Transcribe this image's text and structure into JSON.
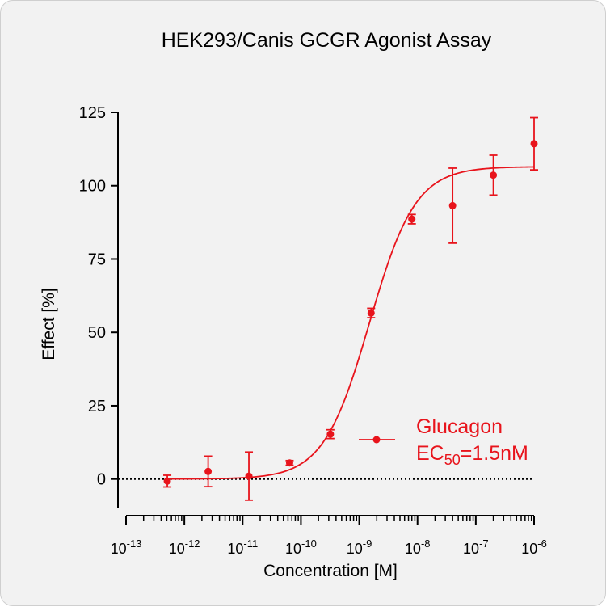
{
  "chart_data": {
    "type": "scatter",
    "title": "HEK293/Canis GCGR Agonist Assay",
    "xlabel": "Concentration [M]",
    "ylabel": "Effect  [%]",
    "x_scale": "log",
    "xlim": [
      1e-13,
      1e-06
    ],
    "ylim": [
      -10,
      125
    ],
    "y_ticks": [
      0,
      25,
      50,
      75,
      100,
      125
    ],
    "x_ticks": [
      {
        "base": "10",
        "exp": "-13"
      },
      {
        "base": "10",
        "exp": "-12"
      },
      {
        "base": "10",
        "exp": "-11"
      },
      {
        "base": "10",
        "exp": "-10"
      },
      {
        "base": "10",
        "exp": "-9"
      },
      {
        "base": "10",
        "exp": "-8"
      },
      {
        "base": "10",
        "exp": "-7"
      },
      {
        "base": "10",
        "exp": "-6"
      }
    ],
    "baseline": 0,
    "legend_position": "right",
    "series": [
      {
        "name": "Glucagon",
        "color": "#e8141c",
        "annotation": {
          "prefix": "EC",
          "sub": "50",
          "suffix": "=1.5nM"
        },
        "points": [
          {
            "x": 5.1e-13,
            "y": -0.7,
            "err": 2.0
          },
          {
            "x": 2.56e-12,
            "y": 2.6,
            "err": 5.2
          },
          {
            "x": 1.28e-11,
            "y": 1.0,
            "err": 8.2
          },
          {
            "x": 6.4e-11,
            "y": 5.5,
            "err": 0.8
          },
          {
            "x": 3.2e-10,
            "y": 15.3,
            "err": 1.5
          },
          {
            "x": 1.6e-09,
            "y": 56.6,
            "err": 1.6
          },
          {
            "x": 8e-09,
            "y": 88.6,
            "err": 1.6
          },
          {
            "x": 4e-08,
            "y": 93.2,
            "err": 12.8
          },
          {
            "x": 2e-07,
            "y": 103.6,
            "err": 6.8
          },
          {
            "x": 1e-06,
            "y": 114.3,
            "err": 8.9
          }
        ],
        "fit": {
          "model": "4PL",
          "bottom": 0,
          "top": 106.5,
          "ec50": 1.5e-09,
          "hill": 1.1
        }
      }
    ]
  }
}
